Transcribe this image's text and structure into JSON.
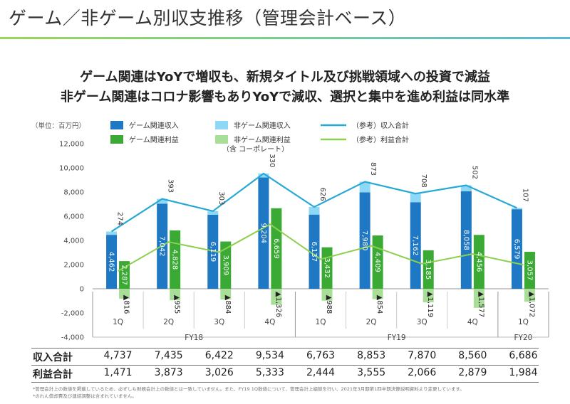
{
  "page": {
    "title": "ゲーム／非ゲーム別収支推移（管理会計ベース）",
    "headline_1": "ゲーム関連はYoYで増収も、新規タイトル及び挑戦領域への投資で減益",
    "headline_2": "非ゲーム関連はコロナ影響もありYoYで減収、選択と集中を進め利益は同水準",
    "footnote_1": "*管理会計上の数値を掲載しているため、必ずしも財務会計上の数値とは一致していません。また、FY19 1Q数値について、管理会計上組替を行い、2021年3月期第1四半期決算説明資料より変更しています。",
    "footnote_2": "*のれん償却費及び連結調整は含まれていません。"
  },
  "colors": {
    "game_revenue": "#1f78c4",
    "non_game_revenue": "#8ed8f5",
    "game_profit": "#3aaa35",
    "non_game_profit": "#a8de98",
    "total_revenue_line": "#26a9d6",
    "total_profit_line": "#8cd04e"
  },
  "chart_data": {
    "type": "bar",
    "unit_label": "（単位：百万円）",
    "quarters": [
      "1Q",
      "2Q",
      "3Q",
      "4Q",
      "1Q",
      "2Q",
      "3Q",
      "4Q",
      "1Q"
    ],
    "fiscal_years": [
      {
        "label": "FY18",
        "span": [
          0,
          3
        ]
      },
      {
        "label": "FY19",
        "span": [
          4,
          7
        ]
      },
      {
        "label": "FY20",
        "span": [
          8,
          8
        ]
      }
    ],
    "ylim": [
      -4000,
      12000
    ],
    "yticks": [
      -4000,
      -2000,
      0,
      2000,
      4000,
      6000,
      8000,
      10000,
      12000
    ],
    "ytick_labels": [
      "-4,000",
      "-2,000",
      "0",
      "2,000",
      "4,000",
      "6,000",
      "8,000",
      "10,000",
      "12,000"
    ],
    "series": [
      {
        "name": "ゲーム関連収入",
        "kind": "bar-stack-revenue",
        "values": [
          4462,
          7042,
          6119,
          9204,
          6137,
          7980,
          7162,
          8058,
          6579
        ],
        "labels": [
          "4,462",
          "7,042",
          "6,119",
          "9,204",
          "6,137",
          "7,980",
          "7,162",
          "8,058",
          "6,579"
        ]
      },
      {
        "name": "非ゲーム関連収入",
        "kind": "bar-stack-revenue",
        "values": [
          274,
          393,
          303,
          330,
          626,
          873,
          708,
          502,
          107
        ],
        "labels": [
          "274",
          "393",
          "303",
          "330",
          "626",
          "873",
          "708",
          "502",
          "107"
        ]
      },
      {
        "name": "ゲーム関連利益",
        "kind": "bar-profit",
        "values": [
          2287,
          4828,
          3909,
          6659,
          3432,
          4409,
          3185,
          4456,
          3057
        ],
        "labels": [
          "2,287",
          "4,828",
          "3,909",
          "6,659",
          "3,432",
          "4,409",
          "3,185",
          "4,456",
          "3,057"
        ]
      },
      {
        "name": "非ゲーム関連利益",
        "name_note": "（含 コーポレート）",
        "kind": "bar-profit",
        "values": [
          -816,
          -955,
          -884,
          -1326,
          -988,
          -854,
          -1119,
          -1577,
          -1072
        ],
        "labels": [
          "▲816",
          "▲955",
          "▲884",
          "▲1,326",
          "▲988",
          "▲854",
          "▲1,119",
          "▲1,577",
          "▲1,072"
        ]
      },
      {
        "name": "（参考）収入合計",
        "kind": "line",
        "values": [
          4737,
          7435,
          6422,
          9534,
          6763,
          8853,
          7870,
          8560,
          6686
        ]
      },
      {
        "name": "（参考）利益合計",
        "kind": "line",
        "values": [
          1471,
          3873,
          3026,
          5333,
          2444,
          3555,
          2066,
          2879,
          1984
        ]
      }
    ]
  },
  "table": {
    "rows": [
      {
        "label": "収入合計",
        "values": [
          "4,737",
          "7,435",
          "6,422",
          "9,534",
          "6,763",
          "8,853",
          "7,870",
          "8,560",
          "6,686"
        ]
      },
      {
        "label": "利益合計",
        "values": [
          "1,471",
          "3,873",
          "3,026",
          "5,333",
          "2,444",
          "3,555",
          "2,066",
          "2,879",
          "1,984"
        ]
      }
    ]
  }
}
